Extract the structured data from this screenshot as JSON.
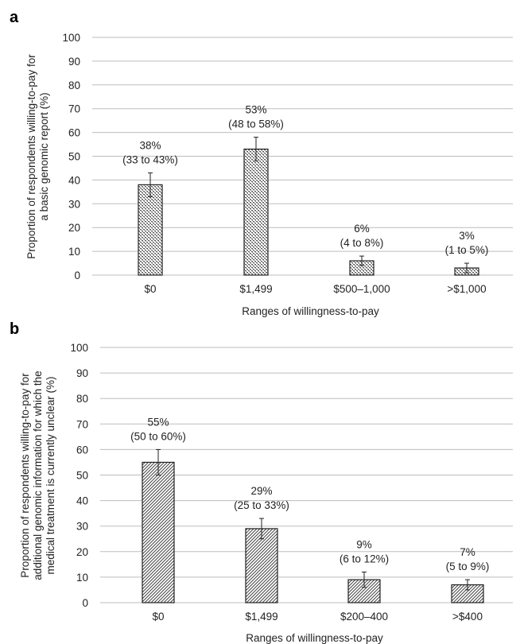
{
  "chart_data": [
    {
      "panel": "a",
      "type": "bar",
      "categories": [
        "$0",
        "$1,499",
        "$500–1,000",
        ">$1,000"
      ],
      "values": [
        38,
        53,
        6,
        3
      ],
      "error_low": [
        33,
        48,
        4,
        1
      ],
      "error_high": [
        43,
        58,
        8,
        5
      ],
      "data_labels": [
        "38%",
        "53%",
        "6%",
        "3%"
      ],
      "ci_labels": [
        "(33 to 43%)",
        "(48 to 58%)",
        "(4 to 8%)",
        "(1 to 5%)"
      ],
      "xlabel": "Ranges of willingness-to-pay",
      "ylabel_lines": [
        "Proportion of respondents willing-to-pay for",
        "a basic genomic report (%)"
      ],
      "ylim": [
        0,
        100
      ],
      "yticks": [
        0,
        10,
        20,
        30,
        40,
        50,
        60,
        70,
        80,
        90,
        100
      ],
      "grid": true,
      "bar_pattern": "dots"
    },
    {
      "panel": "b",
      "type": "bar",
      "categories": [
        "$0",
        "$1,499",
        "$200–400",
        ">$400"
      ],
      "values": [
        55,
        29,
        9,
        7
      ],
      "error_low": [
        50,
        25,
        6,
        5
      ],
      "error_high": [
        60,
        33,
        12,
        9
      ],
      "data_labels": [
        "55%",
        "29%",
        "9%",
        "7%"
      ],
      "ci_labels": [
        "(50 to 60%)",
        "(25 to 33%)",
        "(6 to 12%)",
        "(5 to 9%)"
      ],
      "xlabel": "Ranges of willingness-to-pay",
      "ylabel_lines": [
        "Proportion of respondents willing-to-pay for",
        "additional genomic information for which the",
        "medical treatment is currently unclear (%)"
      ],
      "ylim": [
        0,
        100
      ],
      "yticks": [
        0,
        10,
        20,
        30,
        40,
        50,
        60,
        70,
        80,
        90,
        100
      ],
      "grid": true,
      "bar_pattern": "diagonal"
    }
  ]
}
